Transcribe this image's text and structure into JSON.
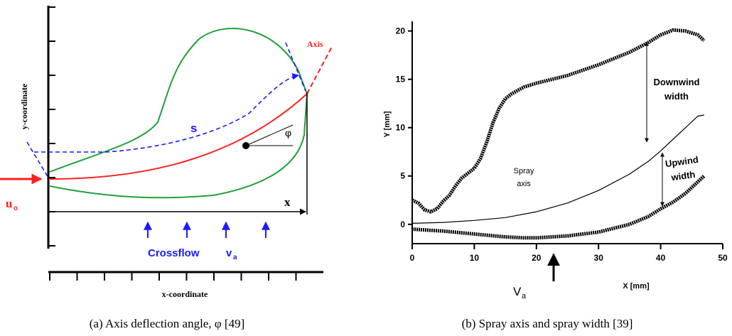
{
  "diagram": {
    "axis_label": "Axis",
    "y_axis_label": "y-coordinate",
    "x_axis_label": "x-coordinate",
    "s_label": "s",
    "phi_label": "φ",
    "x_label": "x",
    "u_label": "u",
    "u_sub": "o",
    "crossflow_label": "Crossflow",
    "v_label": "v",
    "v_sub": "a"
  },
  "chart_data": {
    "type": "line",
    "x_label": "X [mm]",
    "y_label": "Y [mm]",
    "xlim": [
      0,
      50
    ],
    "ylim": [
      -2,
      21
    ],
    "xticks": [
      0,
      10,
      20,
      30,
      40,
      50
    ],
    "yticks": [
      0,
      5,
      10,
      15,
      20
    ],
    "annotations": {
      "downwind": [
        "Downwind",
        "width"
      ],
      "upwind": [
        "Upwind",
        "width"
      ],
      "axis": [
        "Spray",
        "axis"
      ],
      "v_main": "V",
      "v_sub": "a"
    },
    "series": [
      {
        "color": "#000000",
        "x": [
          0,
          1,
          2,
          3,
          4,
          5,
          6,
          7,
          8,
          9,
          10,
          11,
          12,
          13,
          14,
          15,
          16,
          18,
          20,
          25,
          30,
          35,
          38,
          40,
          42,
          44,
          46,
          47
        ],
        "values": [
          2.5,
          2.2,
          1.5,
          1.3,
          1.6,
          2.4,
          3,
          4,
          4.8,
          5.3,
          5.8,
          6.8,
          8.5,
          10.5,
          12,
          13,
          13.5,
          14.2,
          14.6,
          15.4,
          16.5,
          17.8,
          18.8,
          19.6,
          20.1,
          20,
          19.6,
          19
        ]
      },
      {
        "color": "#000000",
        "x": [
          0,
          5,
          10,
          15,
          20,
          25,
          30,
          35,
          38,
          40,
          42,
          44,
          46,
          47
        ],
        "values": [
          0.1,
          0.2,
          0.4,
          0.7,
          1.3,
          2.2,
          3.5,
          5.2,
          6.5,
          7.6,
          8.8,
          10,
          11.2,
          11.3
        ]
      },
      {
        "color": "#000000",
        "x": [
          0,
          5,
          10,
          15,
          18,
          20,
          25,
          30,
          35,
          38,
          40,
          42,
          44,
          46,
          47
        ],
        "values": [
          -0.5,
          -0.7,
          -1,
          -1.3,
          -1.4,
          -1.4,
          -1.2,
          -0.8,
          0,
          0.8,
          1.6,
          2.3,
          3.2,
          4.4,
          5
        ]
      }
    ]
  },
  "captions": [
    "(a) Axis deflection angle, φ [49]",
    "(b) Spray axis and spray width [39]"
  ]
}
